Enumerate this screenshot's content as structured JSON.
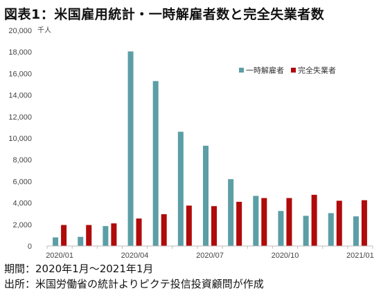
{
  "title": "図表1：米国雇用統計・一時解雇者数と完全失業者数",
  "footer": {
    "period": "期間：2020年1月～2021年1月",
    "source": "出所：米国労働省の統計よりピクテ投信投資顧問が作成"
  },
  "colors": {
    "temporary_layoff": "#5c9ea5",
    "unemployed": "#b00a0a",
    "axis": "#bbbbbb",
    "text": "#444444"
  },
  "chart_data": {
    "type": "bar",
    "title": "",
    "xlabel": "",
    "ylabel": "千人",
    "ylim": [
      0,
      20000
    ],
    "yticks": [
      0,
      2000,
      4000,
      6000,
      8000,
      10000,
      12000,
      14000,
      16000,
      18000,
      20000
    ],
    "ytick_labels": [
      "0",
      "2,000",
      "4,000",
      "6,000",
      "8,000",
      "10,000",
      "12,000",
      "14,000",
      "16,000",
      "18,000",
      "20,000"
    ],
    "grid": false,
    "legend_position": "top-right",
    "categories": [
      "2020/01",
      "2020/02",
      "2020/03",
      "2020/04",
      "2020/05",
      "2020/06",
      "2020/07",
      "2020/08",
      "2020/09",
      "2020/10",
      "2020/11",
      "2020/12",
      "2021/01"
    ],
    "x_tick_labels": [
      {
        "index": 0,
        "label": "2020/01"
      },
      {
        "index": 3,
        "label": "2020/04"
      },
      {
        "index": 6,
        "label": "2020/07"
      },
      {
        "index": 9,
        "label": "2020/10"
      },
      {
        "index": 12,
        "label": "2021/01"
      }
    ],
    "series": [
      {
        "name": "一時解雇者",
        "color": "#5c9ea5",
        "values": [
          800,
          850,
          1850,
          18050,
          15300,
          10600,
          9300,
          6200,
          4650,
          3250,
          2800,
          3050,
          2750
        ]
      },
      {
        "name": "完全失業者",
        "color": "#b00a0a",
        "values": [
          1950,
          1950,
          2100,
          2550,
          2950,
          3750,
          3700,
          4100,
          4450,
          4450,
          4750,
          4200,
          4250
        ]
      }
    ]
  }
}
